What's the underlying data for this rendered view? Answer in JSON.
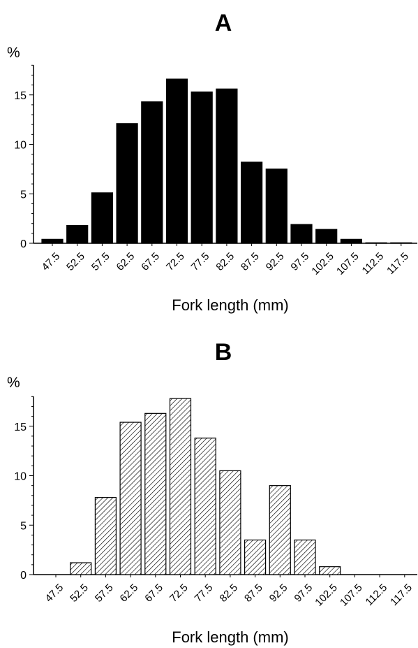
{
  "chart_data": [
    {
      "type": "bar",
      "title": "A",
      "ylabel": "%",
      "xlabel": "Fork length (mm)",
      "categories": [
        "47.5",
        "52.5",
        "57.5",
        "62.5",
        "67.5",
        "72.5",
        "77.5",
        "82.5",
        "87.5",
        "92.5",
        "97.5",
        "102.5",
        "107.5",
        "112.5",
        "117.5"
      ],
      "values": [
        0.4,
        1.8,
        5.1,
        12.1,
        14.3,
        16.6,
        15.3,
        15.6,
        8.2,
        7.5,
        1.9,
        1.4,
        0.4,
        0.05,
        0.05
      ],
      "yticks": [
        0,
        5,
        10,
        15
      ],
      "ylim": [
        0,
        18
      ],
      "bar_style": "solid",
      "bar_color": "#000000"
    },
    {
      "type": "bar",
      "title": "B",
      "ylabel": "%",
      "xlabel": "Fork length (mm)",
      "categories": [
        "47.5",
        "52.5",
        "57.5",
        "62.5",
        "67.5",
        "72.5",
        "77.5",
        "82.5",
        "87.5",
        "92.5",
        "97.5",
        "102.5",
        "107.5",
        "112.5",
        "117.5"
      ],
      "values": [
        0,
        1.2,
        7.8,
        15.4,
        16.3,
        17.8,
        13.8,
        10.5,
        3.5,
        9.0,
        3.5,
        0.8,
        0,
        0,
        0
      ],
      "yticks": [
        0,
        5,
        10,
        15
      ],
      "ylim": [
        0,
        18
      ],
      "bar_style": "hatched",
      "bar_color": "#000000"
    }
  ]
}
